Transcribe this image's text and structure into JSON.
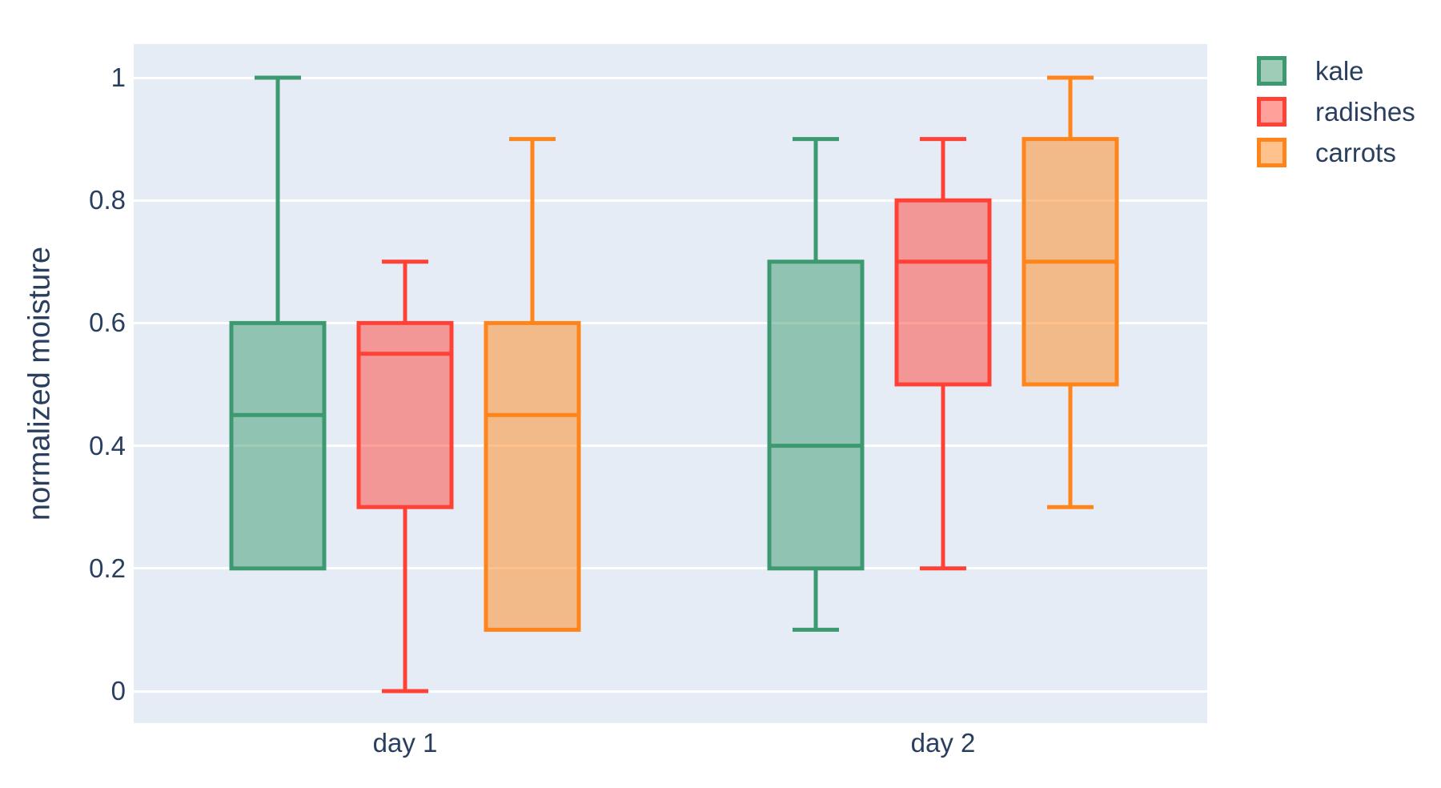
{
  "figure": {
    "background_color": "#ffffff",
    "plot_background_color": "#E5ECF6",
    "grid_color": "#ffffff",
    "text_color": "#2a3f5f"
  },
  "chart_data": {
    "type": "box",
    "boxmode": "group",
    "title": "",
    "xlabel": "",
    "ylabel": "normalized moisture",
    "categories": [
      "day 1",
      "day 2"
    ],
    "yticks": {
      "values": [
        0,
        0.2,
        0.4,
        0.6,
        0.8,
        1
      ],
      "labels": [
        "0",
        "0.2",
        "0.4",
        "0.6",
        "0.8",
        "1"
      ]
    },
    "ylim": [
      -0.052,
      1.055
    ],
    "grid": true,
    "legend_position": "top-right",
    "series": [
      {
        "name": "kale",
        "color": "#3D9970",
        "fill_opacity": 0.5,
        "boxes": [
          {
            "category": "day 1",
            "min": 0.2,
            "q1": 0.2,
            "median": 0.45,
            "q3": 0.6,
            "max": 1.0
          },
          {
            "category": "day 2",
            "min": 0.1,
            "q1": 0.2,
            "median": 0.4,
            "q3": 0.7,
            "max": 0.9
          }
        ]
      },
      {
        "name": "radishes",
        "color": "#FF4136",
        "fill_opacity": 0.5,
        "boxes": [
          {
            "category": "day 1",
            "min": 0.0,
            "q1": 0.3,
            "median": 0.55,
            "q3": 0.6,
            "max": 0.7
          },
          {
            "category": "day 2",
            "min": 0.2,
            "q1": 0.5,
            "median": 0.7,
            "q3": 0.8,
            "max": 0.9
          }
        ]
      },
      {
        "name": "carrots",
        "color": "#FF851B",
        "fill_opacity": 0.5,
        "boxes": [
          {
            "category": "day 1",
            "min": 0.1,
            "q1": 0.1,
            "median": 0.45,
            "q3": 0.6,
            "max": 0.9
          },
          {
            "category": "day 2",
            "min": 0.3,
            "q1": 0.5,
            "median": 0.7,
            "q3": 0.9,
            "max": 1.0
          }
        ]
      }
    ]
  }
}
